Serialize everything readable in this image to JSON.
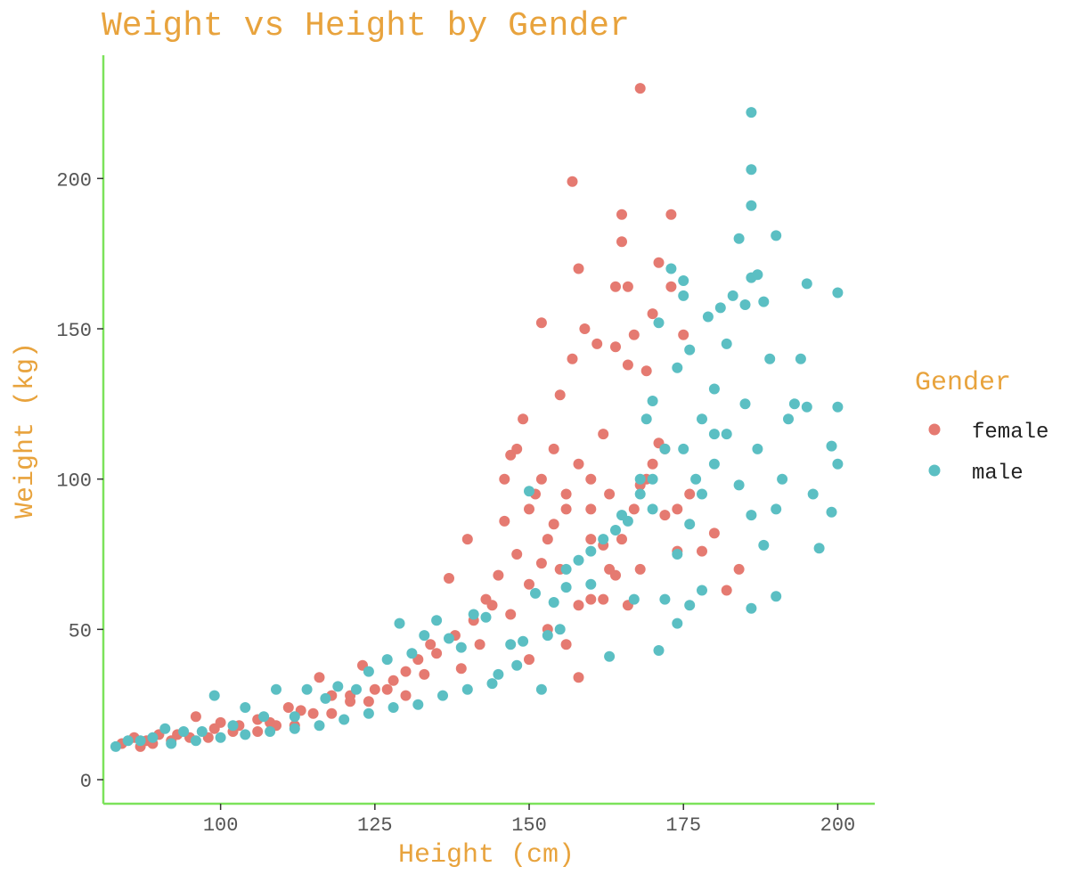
{
  "chart_data": {
    "type": "scatter",
    "title": "Weight vs Height by Gender",
    "xlabel": "Height (cm)",
    "ylabel": "Weight (kg)",
    "xlim": [
      81,
      206
    ],
    "ylim": [
      -8,
      241
    ],
    "x_ticks": [
      100,
      125,
      150,
      175,
      200
    ],
    "y_ticks": [
      0,
      50,
      100,
      150,
      200
    ],
    "x_tick_labels": [
      "100",
      "125",
      "150",
      "175",
      "200"
    ],
    "y_tick_labels": [
      "0",
      "50",
      "100",
      "150",
      "200"
    ],
    "grid": false,
    "legend": {
      "title": "Gender",
      "position": "right"
    },
    "colors": {
      "title": "#E8A33D",
      "axis_line": "#7CE25A",
      "tick": "#333333"
    },
    "series": [
      {
        "name": "female",
        "color": "#E57A71",
        "points": [
          [
            84,
            12
          ],
          [
            86,
            14
          ],
          [
            88,
            13
          ],
          [
            90,
            15
          ],
          [
            93,
            15
          ],
          [
            96,
            21
          ],
          [
            99,
            17
          ],
          [
            100,
            19
          ],
          [
            103,
            18
          ],
          [
            106,
            20
          ],
          [
            108,
            19
          ],
          [
            111,
            24
          ],
          [
            113,
            23
          ],
          [
            116,
            34
          ],
          [
            118,
            28
          ],
          [
            121,
            28
          ],
          [
            123,
            38
          ],
          [
            125,
            30
          ],
          [
            128,
            33
          ],
          [
            130,
            36
          ],
          [
            132,
            40
          ],
          [
            134,
            45
          ],
          [
            137,
            67
          ],
          [
            138,
            48
          ],
          [
            140,
            80
          ],
          [
            141,
            53
          ],
          [
            143,
            60
          ],
          [
            145,
            68
          ],
          [
            146,
            86
          ],
          [
            147,
            108
          ],
          [
            148,
            75
          ],
          [
            149,
            120
          ],
          [
            150,
            90
          ],
          [
            151,
            95
          ],
          [
            152,
            152
          ],
          [
            152,
            100
          ],
          [
            153,
            80
          ],
          [
            154,
            110
          ],
          [
            155,
            70
          ],
          [
            155,
            128
          ],
          [
            156,
            90
          ],
          [
            157,
            199
          ],
          [
            157,
            140
          ],
          [
            158,
            170
          ],
          [
            158,
            58
          ],
          [
            159,
            150
          ],
          [
            160,
            100
          ],
          [
            160,
            80
          ],
          [
            161,
            145
          ],
          [
            162,
            60
          ],
          [
            162,
            115
          ],
          [
            163,
            95
          ],
          [
            164,
            144
          ],
          [
            164,
            164
          ],
          [
            165,
            188
          ],
          [
            165,
            179
          ],
          [
            166,
            138
          ],
          [
            166,
            164
          ],
          [
            167,
            90
          ],
          [
            167,
            148
          ],
          [
            168,
            230
          ],
          [
            168,
            70
          ],
          [
            169,
            100
          ],
          [
            169,
            136
          ],
          [
            170,
            155
          ],
          [
            171,
            172
          ],
          [
            171,
            112
          ],
          [
            172,
            110
          ],
          [
            173,
            188
          ],
          [
            173,
            164
          ],
          [
            174,
            90
          ],
          [
            175,
            148
          ],
          [
            176,
            95
          ],
          [
            178,
            76
          ],
          [
            180,
            82
          ],
          [
            182,
            63
          ],
          [
            184,
            70
          ],
          [
            153,
            50
          ],
          [
            156,
            45
          ],
          [
            160,
            60
          ],
          [
            163,
            70
          ],
          [
            165,
            80
          ],
          [
            158,
            34
          ],
          [
            150,
            40
          ],
          [
            147,
            55
          ],
          [
            144,
            58
          ],
          [
            142,
            45
          ],
          [
            139,
            37
          ],
          [
            135,
            42
          ],
          [
            133,
            35
          ],
          [
            130,
            28
          ],
          [
            127,
            30
          ],
          [
            124,
            26
          ],
          [
            121,
            26
          ],
          [
            118,
            22
          ],
          [
            115,
            22
          ],
          [
            112,
            18
          ],
          [
            109,
            18
          ],
          [
            106,
            16
          ],
          [
            102,
            16
          ],
          [
            98,
            14
          ],
          [
            95,
            14
          ],
          [
            92,
            13
          ],
          [
            89,
            12
          ],
          [
            87,
            11
          ],
          [
            146,
            100
          ],
          [
            148,
            110
          ],
          [
            150,
            65
          ],
          [
            152,
            72
          ],
          [
            154,
            85
          ],
          [
            156,
            95
          ],
          [
            158,
            105
          ],
          [
            160,
            90
          ],
          [
            162,
            78
          ],
          [
            164,
            68
          ],
          [
            166,
            58
          ],
          [
            168,
            98
          ],
          [
            170,
            105
          ],
          [
            172,
            88
          ],
          [
            174,
            76
          ]
        ]
      },
      {
        "name": "male",
        "color": "#5BBFC3",
        "points": [
          [
            83,
            11
          ],
          [
            85,
            13
          ],
          [
            87,
            13
          ],
          [
            89,
            14
          ],
          [
            91,
            17
          ],
          [
            94,
            16
          ],
          [
            97,
            16
          ],
          [
            99,
            28
          ],
          [
            102,
            18
          ],
          [
            104,
            24
          ],
          [
            107,
            21
          ],
          [
            109,
            30
          ],
          [
            112,
            21
          ],
          [
            114,
            30
          ],
          [
            117,
            27
          ],
          [
            119,
            31
          ],
          [
            122,
            30
          ],
          [
            124,
            36
          ],
          [
            127,
            40
          ],
          [
            129,
            52
          ],
          [
            131,
            42
          ],
          [
            133,
            48
          ],
          [
            135,
            53
          ],
          [
            137,
            47
          ],
          [
            139,
            44
          ],
          [
            141,
            55
          ],
          [
            143,
            54
          ],
          [
            145,
            35
          ],
          [
            147,
            45
          ],
          [
            149,
            46
          ],
          [
            150,
            96
          ],
          [
            151,
            62
          ],
          [
            152,
            30
          ],
          [
            154,
            59
          ],
          [
            156,
            64
          ],
          [
            158,
            73
          ],
          [
            160,
            65
          ],
          [
            162,
            80
          ],
          [
            163,
            41
          ],
          [
            165,
            88
          ],
          [
            166,
            86
          ],
          [
            167,
            60
          ],
          [
            168,
            100
          ],
          [
            169,
            120
          ],
          [
            170,
            126
          ],
          [
            171,
            152
          ],
          [
            171,
            43
          ],
          [
            172,
            110
          ],
          [
            173,
            170
          ],
          [
            174,
            137
          ],
          [
            175,
            166
          ],
          [
            175,
            161
          ],
          [
            176,
            143
          ],
          [
            177,
            100
          ],
          [
            178,
            120
          ],
          [
            179,
            154
          ],
          [
            180,
            130
          ],
          [
            181,
            157
          ],
          [
            182,
            145
          ],
          [
            183,
            161
          ],
          [
            184,
            180
          ],
          [
            185,
            158
          ],
          [
            186,
            167
          ],
          [
            186,
            222
          ],
          [
            186,
            203
          ],
          [
            186,
            191
          ],
          [
            187,
            168
          ],
          [
            187,
            110
          ],
          [
            188,
            159
          ],
          [
            189,
            140
          ],
          [
            190,
            181
          ],
          [
            191,
            100
          ],
          [
            192,
            120
          ],
          [
            193,
            125
          ],
          [
            194,
            140
          ],
          [
            195,
            165
          ],
          [
            195,
            124
          ],
          [
            196,
            95
          ],
          [
            197,
            77
          ],
          [
            199,
            111
          ],
          [
            199,
            89
          ],
          [
            200,
            124
          ],
          [
            200,
            105
          ],
          [
            200,
            162
          ],
          [
            170,
            90
          ],
          [
            172,
            60
          ],
          [
            174,
            75
          ],
          [
            176,
            85
          ],
          [
            178,
            95
          ],
          [
            180,
            105
          ],
          [
            182,
            115
          ],
          [
            184,
            98
          ],
          [
            186,
            88
          ],
          [
            188,
            78
          ],
          [
            190,
            90
          ],
          [
            178,
            63
          ],
          [
            176,
            58
          ],
          [
            174,
            52
          ],
          [
            186,
            57
          ],
          [
            190,
            61
          ],
          [
            185,
            125
          ],
          [
            180,
            115
          ],
          [
            175,
            110
          ],
          [
            170,
            100
          ],
          [
            168,
            95
          ],
          [
            164,
            83
          ],
          [
            160,
            76
          ],
          [
            156,
            70
          ],
          [
            155,
            50
          ],
          [
            153,
            48
          ],
          [
            148,
            38
          ],
          [
            144,
            32
          ],
          [
            140,
            30
          ],
          [
            136,
            28
          ],
          [
            132,
            25
          ],
          [
            128,
            24
          ],
          [
            124,
            22
          ],
          [
            120,
            20
          ],
          [
            116,
            18
          ],
          [
            112,
            17
          ],
          [
            108,
            16
          ],
          [
            104,
            15
          ],
          [
            100,
            14
          ],
          [
            96,
            13
          ],
          [
            92,
            12
          ]
        ]
      }
    ]
  }
}
